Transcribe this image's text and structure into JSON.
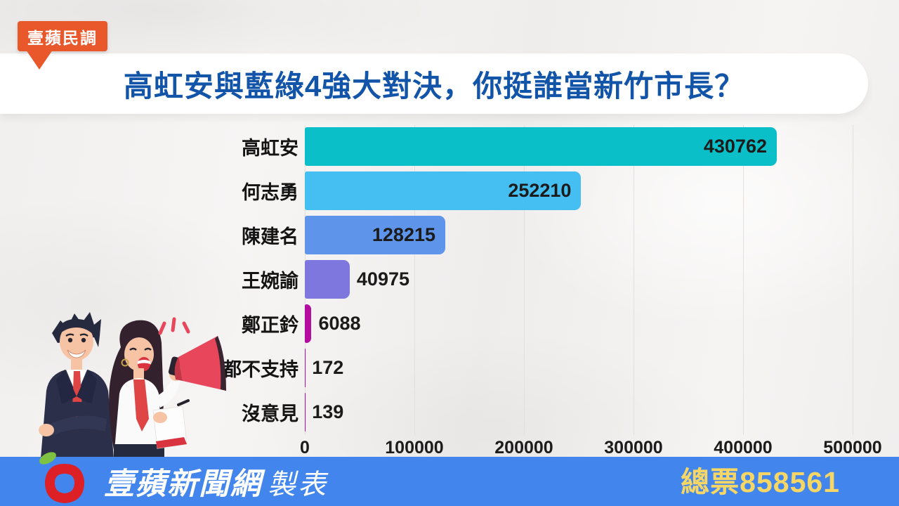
{
  "badge": {
    "label": "壹蘋民調"
  },
  "title": "高虹安與藍綠4強大對決，你挺誰當新竹市長？",
  "chart_data": {
    "type": "bar",
    "orientation": "horizontal",
    "title": "高虹安與藍綠4強大對決，你挺誰當新竹市長？",
    "categories": [
      "高虹安",
      "何志勇",
      "陳建名",
      "王婉諭",
      "鄭正鈐",
      "都不支持",
      "沒意見"
    ],
    "values": [
      430762,
      252210,
      128215,
      40975,
      6088,
      172,
      139
    ],
    "bar_colors": [
      "#0ABFC7",
      "#45BEF2",
      "#5E95EA",
      "#7E78DE",
      "#B50CA0",
      "#B50CA0",
      "#B50CA0"
    ],
    "x_ticks": [
      "0",
      "100000",
      "200000",
      "300000",
      "400000",
      "500000"
    ],
    "xlim": [
      0,
      500000
    ],
    "grid": true,
    "legend": "none",
    "value_labels": "end-of-bar"
  },
  "footer": {
    "brand": "壹蘋新聞網",
    "suffix": "製表",
    "total": "總票858561"
  },
  "icons": {
    "apple_logo": "apple-logo-icon",
    "illustration": "illustration-people-megaphone"
  },
  "colors": {
    "badge_bg": "#E8582B",
    "band_bg": "#FFFFFF",
    "title_text": "#1254A8",
    "category_text": "#141414",
    "bar_value_text": "#1B1B1B",
    "gridline": "#E2DFDF",
    "footer_bg": "#4285EC",
    "footer_text": "#FFFFFF",
    "total_text": "#F6D765",
    "apple_red": "#DD1F26",
    "leaf_green": "#7FC241"
  }
}
